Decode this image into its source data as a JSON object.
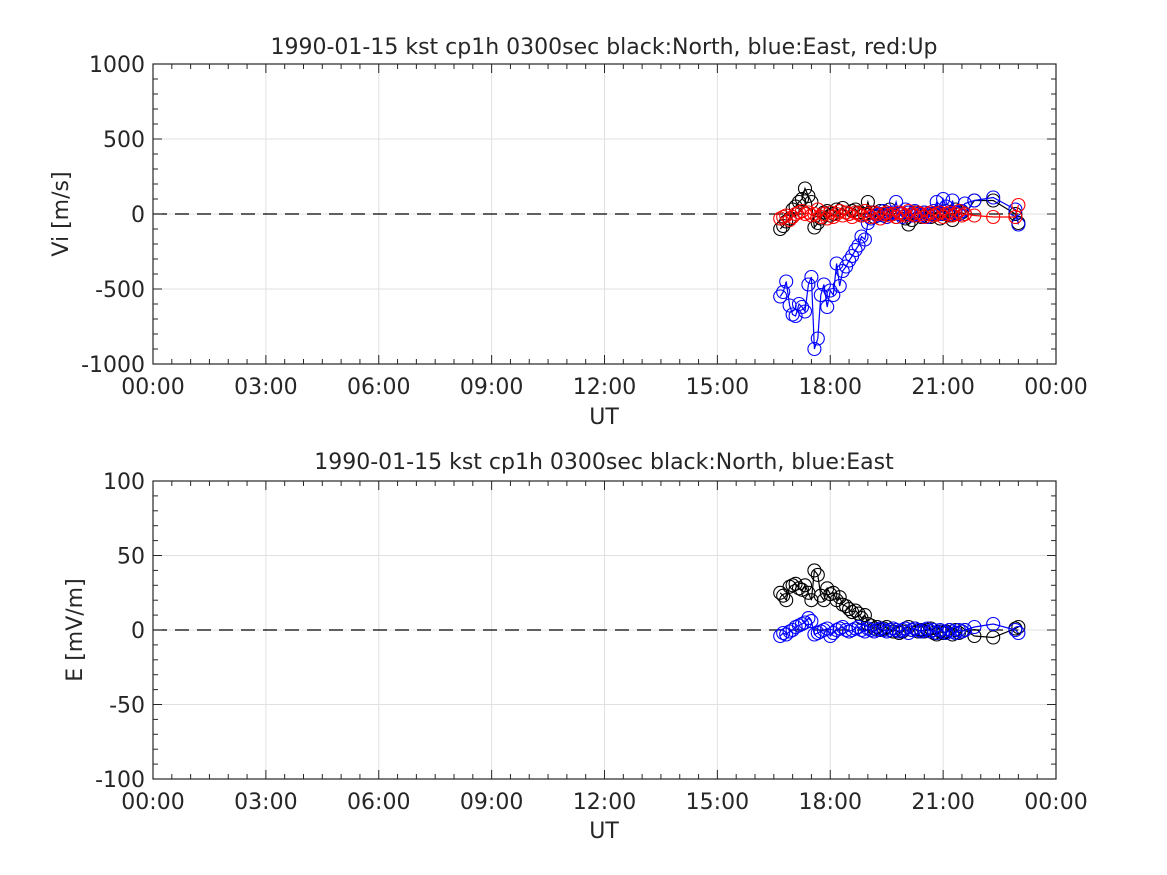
{
  "colors": {
    "north": "#000000",
    "east": "#0000ff",
    "up": "#ff0000",
    "grid": "#e0e0e0",
    "axis": "#262626",
    "zero_line": "#000000"
  },
  "chart_data": [
    {
      "type": "line",
      "title": "1990-01-15 kst cp1h 0300sec black:North, blue:East, red:Up",
      "xlabel": "UT",
      "ylabel": "Vi [m/s]",
      "xlim": [
        0,
        24
      ],
      "ylim": [
        -1000,
        1000
      ],
      "xticks": [
        0,
        3,
        6,
        9,
        12,
        15,
        18,
        21,
        24
      ],
      "xtick_labels": [
        "00:00",
        "03:00",
        "06:00",
        "09:00",
        "12:00",
        "15:00",
        "18:00",
        "21:00",
        "00:00"
      ],
      "yticks": [
        -1000,
        -500,
        0,
        500,
        1000
      ],
      "ytick_labels": [
        "-1000",
        "-500",
        "0",
        "500",
        "1000"
      ],
      "grid": true,
      "zero_line": true,
      "marker": "circle",
      "series": [
        {
          "color_key": "north",
          "x": [
            16.67,
            16.75,
            16.83,
            16.92,
            17.0,
            17.08,
            17.17,
            17.25,
            17.33,
            17.42,
            17.5,
            17.58,
            17.67,
            17.75,
            17.83,
            17.92,
            18.0,
            18.08,
            18.17,
            18.25,
            18.33,
            18.42,
            18.5,
            18.58,
            18.67,
            18.75,
            18.83,
            18.92,
            19.0,
            19.08,
            19.17,
            19.25,
            19.33,
            19.42,
            19.5,
            19.58,
            19.67,
            19.75,
            19.83,
            19.92,
            20.0,
            20.08,
            20.17,
            20.25,
            20.33,
            20.42,
            20.5,
            20.58,
            20.67,
            20.75,
            20.83,
            20.92,
            21.0,
            21.08,
            21.17,
            21.25,
            21.33,
            21.42,
            21.5,
            21.58,
            21.83,
            22.33,
            22.92,
            23.0
          ],
          "y": [
            -100,
            -80,
            -50,
            -30,
            30,
            50,
            80,
            100,
            170,
            120,
            80,
            -90,
            -60,
            -30,
            10,
            20,
            -10,
            0,
            30,
            20,
            40,
            10,
            0,
            20,
            30,
            10,
            -10,
            0,
            80,
            10,
            -20,
            0,
            20,
            -10,
            0,
            30,
            0,
            -20,
            10,
            0,
            -30,
            -70,
            -40,
            10,
            0,
            -20,
            10,
            0,
            -20,
            0,
            10,
            -30,
            0,
            20,
            -10,
            -40,
            30,
            0,
            10,
            0,
            90,
            90,
            0,
            -60
          ]
        },
        {
          "color_key": "east",
          "x": [
            16.67,
            16.75,
            16.83,
            16.92,
            17.0,
            17.08,
            17.17,
            17.25,
            17.33,
            17.42,
            17.5,
            17.58,
            17.67,
            17.75,
            17.83,
            17.92,
            18.0,
            18.08,
            18.17,
            18.25,
            18.33,
            18.42,
            18.5,
            18.58,
            18.67,
            18.75,
            18.83,
            18.92,
            19.0,
            19.08,
            19.17,
            19.25,
            19.33,
            19.42,
            19.5,
            19.58,
            19.67,
            19.75,
            19.83,
            19.92,
            20.0,
            20.08,
            20.17,
            20.25,
            20.33,
            20.42,
            20.5,
            20.58,
            20.67,
            20.75,
            20.83,
            20.92,
            21.0,
            21.08,
            21.17,
            21.25,
            21.33,
            21.42,
            21.5,
            21.58,
            21.83,
            22.33,
            22.92,
            23.0
          ],
          "y": [
            -550,
            -520,
            -450,
            -610,
            -670,
            -680,
            -600,
            -620,
            -650,
            -470,
            -420,
            -900,
            -830,
            -540,
            -470,
            -620,
            -510,
            -540,
            -330,
            -480,
            -380,
            -350,
            -310,
            -280,
            -240,
            -210,
            -150,
            -170,
            -60,
            -30,
            10,
            -10,
            0,
            20,
            -20,
            0,
            10,
            80,
            0,
            -20,
            30,
            10,
            -10,
            20,
            0,
            -10,
            10,
            -20,
            0,
            20,
            80,
            0,
            100,
            50,
            0,
            90,
            10,
            0,
            20,
            70,
            90,
            110,
            30,
            -70
          ]
        },
        {
          "color_key": "up",
          "x": [
            16.67,
            16.75,
            16.83,
            16.92,
            17.0,
            17.08,
            17.17,
            17.25,
            17.33,
            17.42,
            17.5,
            17.58,
            17.67,
            17.75,
            17.83,
            17.92,
            18.0,
            18.08,
            18.17,
            18.25,
            18.33,
            18.42,
            18.5,
            18.58,
            18.67,
            18.75,
            18.83,
            18.92,
            19.0,
            19.08,
            19.17,
            19.25,
            19.33,
            19.42,
            19.5,
            19.58,
            19.67,
            19.75,
            19.83,
            19.92,
            20.0,
            20.08,
            20.17,
            20.25,
            20.33,
            20.42,
            20.5,
            20.58,
            20.67,
            20.75,
            20.83,
            20.92,
            21.0,
            21.08,
            21.17,
            21.25,
            21.33,
            21.42,
            21.5,
            21.58,
            21.83,
            22.33,
            22.92,
            23.0
          ],
          "y": [
            -30,
            -20,
            -10,
            -40,
            -20,
            0,
            10,
            20,
            0,
            10,
            -10,
            0,
            30,
            -20,
            0,
            -30,
            10,
            -20,
            0,
            20,
            -10,
            10,
            0,
            -20,
            10,
            0,
            -10,
            20,
            0,
            -20,
            10,
            0,
            -30,
            0,
            10,
            -10,
            0,
            -20,
            10,
            0,
            -10,
            20,
            0,
            -10,
            10,
            0,
            -20,
            0,
            10,
            -10,
            0,
            10,
            -20,
            0,
            10,
            -10,
            0,
            20,
            -10,
            0,
            -10,
            -20,
            -20,
            60
          ]
        }
      ]
    },
    {
      "type": "line",
      "title": "1990-01-15 kst cp1h 0300sec black:North, blue:East",
      "xlabel": "UT",
      "ylabel": "E [mV/m]",
      "xlim": [
        0,
        24
      ],
      "ylim": [
        -100,
        100
      ],
      "xticks": [
        0,
        3,
        6,
        9,
        12,
        15,
        18,
        21,
        24
      ],
      "xtick_labels": [
        "00:00",
        "03:00",
        "06:00",
        "09:00",
        "12:00",
        "15:00",
        "18:00",
        "21:00",
        "00:00"
      ],
      "yticks": [
        -100,
        -50,
        0,
        50,
        100
      ],
      "ytick_labels": [
        "-100",
        "-50",
        "0",
        "50",
        "100"
      ],
      "grid": true,
      "zero_line": true,
      "marker": "circle",
      "series": [
        {
          "color_key": "north",
          "x": [
            16.67,
            16.75,
            16.83,
            16.92,
            17.0,
            17.08,
            17.17,
            17.25,
            17.33,
            17.42,
            17.5,
            17.58,
            17.67,
            17.75,
            17.83,
            17.92,
            18.0,
            18.08,
            18.17,
            18.25,
            18.33,
            18.42,
            18.5,
            18.58,
            18.67,
            18.75,
            18.83,
            18.92,
            19.0,
            19.08,
            19.17,
            19.25,
            19.33,
            19.42,
            19.5,
            19.58,
            19.67,
            19.75,
            19.83,
            19.92,
            20.0,
            20.08,
            20.17,
            20.25,
            20.33,
            20.42,
            20.5,
            20.58,
            20.67,
            20.75,
            20.83,
            20.92,
            21.0,
            21.08,
            21.17,
            21.25,
            21.33,
            21.42,
            21.5,
            21.58,
            21.83,
            22.33,
            22.92,
            23.0
          ],
          "y": [
            25,
            23,
            20,
            29,
            30,
            31,
            28,
            27,
            30,
            25,
            20,
            40,
            37,
            23,
            20,
            28,
            24,
            25,
            20,
            22,
            17,
            16,
            14,
            12,
            13,
            11,
            8,
            10,
            4,
            3,
            1,
            2,
            0,
            1,
            2,
            0,
            -1,
            0,
            -2,
            -1,
            1,
            2,
            0,
            1,
            -1,
            0,
            -1,
            0,
            1,
            -2,
            -3,
            -1,
            -2,
            -1,
            0,
            -3,
            0,
            -2,
            -1,
            0,
            -4,
            -5,
            1,
            2
          ]
        },
        {
          "color_key": "east",
          "x": [
            16.67,
            16.75,
            16.83,
            16.92,
            17.0,
            17.08,
            17.17,
            17.25,
            17.33,
            17.42,
            17.5,
            17.58,
            17.67,
            17.75,
            17.83,
            17.92,
            18.0,
            18.08,
            18.17,
            18.25,
            18.33,
            18.42,
            18.5,
            18.58,
            18.67,
            18.75,
            18.83,
            18.92,
            19.0,
            19.08,
            19.17,
            19.25,
            19.33,
            19.42,
            19.5,
            19.58,
            19.67,
            19.75,
            19.83,
            19.92,
            20.0,
            20.08,
            20.17,
            20.25,
            20.33,
            20.42,
            20.5,
            20.58,
            20.67,
            20.75,
            20.83,
            20.92,
            21.0,
            21.08,
            21.17,
            21.25,
            21.33,
            21.42,
            21.5,
            21.58,
            21.83,
            22.33,
            22.92,
            23.0
          ],
          "y": [
            -4,
            -2,
            -3,
            -1,
            0,
            2,
            3,
            4,
            5,
            8,
            6,
            -3,
            -2,
            -1,
            0,
            1,
            -4,
            -2,
            0,
            1,
            2,
            0,
            -1,
            0,
            1,
            2,
            0,
            -1,
            1,
            0,
            -1,
            0,
            1,
            0,
            -1,
            0,
            1,
            0,
            -1,
            0,
            1,
            -2,
            0,
            1,
            0,
            -1,
            0,
            1,
            -1,
            0,
            -2,
            0,
            -1,
            -2,
            0,
            -1,
            -2,
            0,
            -1,
            0,
            2,
            4,
            0,
            -2
          ]
        }
      ]
    }
  ]
}
